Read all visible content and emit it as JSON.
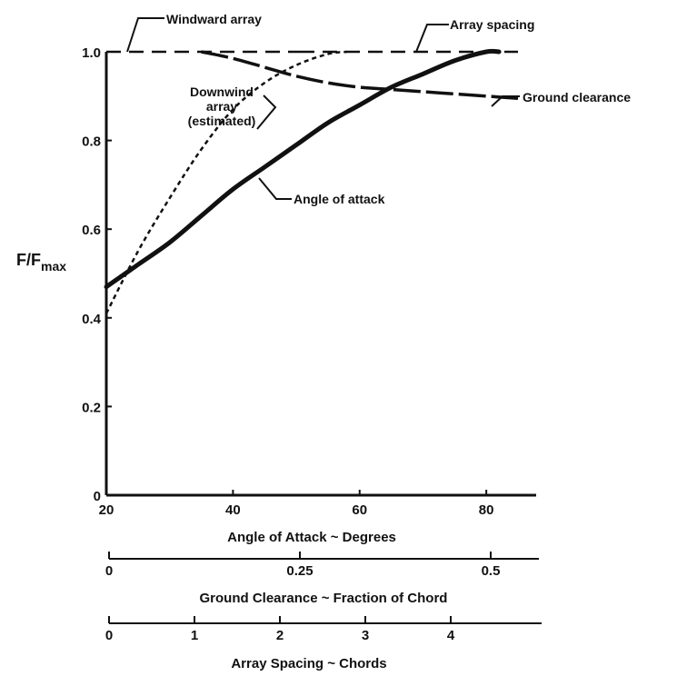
{
  "chart_data": {
    "type": "line",
    "ylabel": "F/F",
    "ylabel_subscript": "max",
    "y_axis": {
      "range": [
        0,
        1.0
      ],
      "ticks": [
        "0",
        "0.2",
        "0.4",
        "0.6",
        "0.8",
        "1.0"
      ]
    },
    "x_axes": [
      {
        "key": "angle",
        "title": "Angle of Attack ~ Degrees",
        "range": [
          20,
          85
        ],
        "ticks": [
          20,
          40,
          60,
          80
        ],
        "tick_labels": [
          "20",
          "40",
          "60",
          "80"
        ]
      },
      {
        "key": "clearance",
        "title": "Ground Clearance ~ Fraction of Chord",
        "ticks": [
          0,
          0.25,
          0.5
        ],
        "tick_labels": [
          "0",
          "0.25",
          "0.5"
        ]
      },
      {
        "key": "spacing",
        "title": "Array Spacing ~ Chords",
        "ticks": [
          0,
          1,
          2,
          3,
          4
        ],
        "tick_labels": [
          "0",
          "1",
          "2",
          "3",
          "4"
        ]
      }
    ],
    "series": [
      {
        "name": "Windward array",
        "style": "dashed",
        "x": [
          20,
          85
        ],
        "y": [
          1.0,
          1.0
        ]
      },
      {
        "name": "Array spacing",
        "style": "dashed",
        "x": [
          20,
          85
        ],
        "y": [
          1.0,
          1.0
        ]
      },
      {
        "name": "Angle of attack",
        "style": "solid-thick",
        "x": [
          20,
          25,
          30,
          35,
          40,
          45,
          50,
          55,
          60,
          65,
          70,
          75,
          80,
          82
        ],
        "y": [
          0.47,
          0.52,
          0.57,
          0.63,
          0.69,
          0.74,
          0.79,
          0.84,
          0.88,
          0.92,
          0.95,
          0.98,
          1.0,
          1.0
        ]
      },
      {
        "name": "Downwind array (estimated)",
        "style": "dotted",
        "x": [
          20,
          25,
          30,
          35,
          40,
          45,
          50,
          55,
          58
        ],
        "y": [
          0.41,
          0.55,
          0.67,
          0.78,
          0.87,
          0.93,
          0.97,
          0.995,
          1.0
        ]
      },
      {
        "name": "Ground clearance",
        "style": "long-dash",
        "x": [
          35,
          40,
          45,
          50,
          55,
          60,
          65,
          70,
          75,
          80,
          85
        ],
        "y": [
          1.0,
          0.985,
          0.965,
          0.945,
          0.93,
          0.92,
          0.915,
          0.91,
          0.905,
          0.9,
          0.895
        ]
      }
    ],
    "annotations": [
      {
        "key": "windward",
        "lines": [
          "Windward array"
        ]
      },
      {
        "key": "spacing",
        "lines": [
          "Array spacing"
        ]
      },
      {
        "key": "downwind",
        "lines": [
          "Downwind",
          "array",
          "(estimated)"
        ]
      },
      {
        "key": "clearance",
        "lines": [
          "Ground clearance"
        ]
      },
      {
        "key": "angle",
        "lines": [
          "Angle of attack"
        ]
      }
    ],
    "grid": false,
    "legend": "none"
  }
}
